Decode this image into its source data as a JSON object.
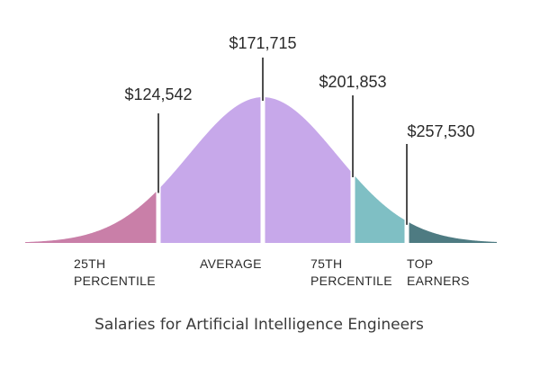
{
  "chart_data": {
    "type": "area",
    "title": "Salaries for Artificial Intelligence Engineers",
    "markers": [
      {
        "key": "p25",
        "label": "$124,542",
        "value": 124542
      },
      {
        "key": "avg",
        "label": "$171,715",
        "value": 171715
      },
      {
        "key": "p75",
        "label": "$201,853",
        "value": 201853
      },
      {
        "key": "top",
        "label": "$257,530",
        "value": 257530
      }
    ],
    "segments": [
      {
        "line1": "25TH",
        "line2": "PERCENTILE",
        "color": "#c97fa8"
      },
      {
        "line1": "AVERAGE",
        "line2": "",
        "color": "#c7a8ea"
      },
      {
        "line1": "75TH",
        "line2": "PERCENTILE",
        "color": "#7fbfc4"
      },
      {
        "line1": "TOP",
        "line2": "EARNERS",
        "color": "#4e7b82"
      }
    ]
  }
}
